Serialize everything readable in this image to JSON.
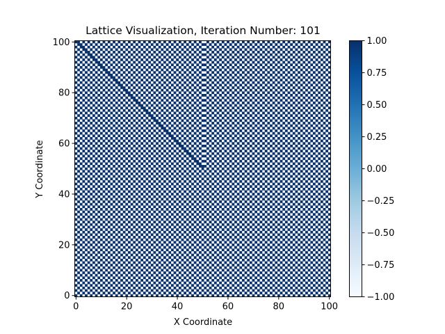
{
  "chart_data": {
    "type": "heatmap",
    "title": "Lattice Visualization, Iteration Number: 101",
    "xlabel": "X Coordinate",
    "ylabel": "Y Coordinate",
    "grid_size": 101,
    "xlim": [
      0,
      101
    ],
    "ylim": [
      0,
      101
    ],
    "x_ticks": [
      0,
      20,
      40,
      60,
      80,
      100
    ],
    "y_ticks": [
      0,
      20,
      40,
      60,
      80,
      100
    ],
    "x_tick_labels": [
      "0",
      "20",
      "40",
      "60",
      "80",
      "100"
    ],
    "y_tick_labels": [
      "0",
      "20",
      "40",
      "60",
      "80",
      "100"
    ],
    "values": {
      "pattern": "checkerboard",
      "value_at_origin": 1,
      "alternating_values": [
        1,
        -1
      ],
      "domain_wall": {
        "from": [
          0,
          101
        ],
        "to": [
          50,
          50
        ],
        "description": "diagonal defect line where the checkerboard phase shifts"
      }
    },
    "colorbar": {
      "colormap": "Blues",
      "vmin": -1.0,
      "vmax": 1.0,
      "ticks": [
        -1.0,
        -0.75,
        -0.5,
        -0.25,
        0.0,
        0.25,
        0.5,
        0.75,
        1.0
      ],
      "tick_labels": [
        "−1.00",
        "−0.75",
        "−0.50",
        "−0.25",
        "0.00",
        "0.25",
        "0.50",
        "0.75",
        "1.00"
      ],
      "color_low": "#f7fbff",
      "color_high": "#08306b"
    },
    "grid": false,
    "legend": "none"
  }
}
